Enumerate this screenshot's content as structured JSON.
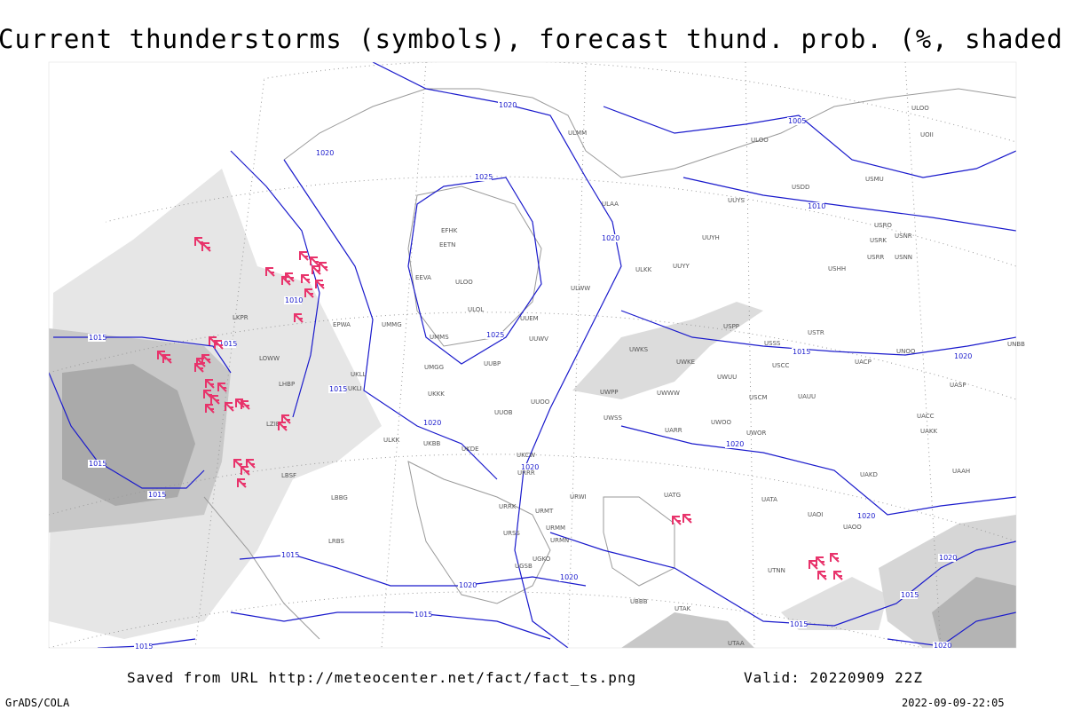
{
  "title": "Current thunderstorms (symbols), forecast thund. prob. (%, shaded)",
  "footer": {
    "source": "Saved from URL http://meteocenter.net/fact/fact_ts.png",
    "valid": "Valid: 20220909 22Z",
    "credit": "GrADS/COLA",
    "timestamp": "2022-09-09-22:05"
  },
  "isobar_labels": [
    "1020",
    "1020",
    "1005",
    "1025",
    "1010",
    "1020",
    "1010",
    "1015",
    "1015",
    "1025",
    "1015",
    "1020",
    "1015",
    "1020",
    "1020",
    "1015",
    "1020",
    "1015",
    "1020",
    "1015",
    "1020",
    "1020",
    "1015",
    "1015",
    "1020",
    "1015",
    "1015",
    "1020"
  ],
  "stations": [
    "ULOO",
    "UOII",
    "ULOO",
    "USDD",
    "UUYS",
    "USMU",
    "USRO",
    "USRK",
    "USNR",
    "USRR",
    "USNN",
    "ULAA",
    "UUYH",
    "ULKK",
    "UUYY",
    "USHH",
    "EFHK",
    "EETN",
    "EEVA",
    "ULOO",
    "ULOL",
    "UUEM",
    "ULWW",
    "ULMM",
    "UMMS",
    "UMGG",
    "UUBP",
    "UUOO",
    "UUWV",
    "UWKS",
    "UWKE",
    "USPP",
    "USSS",
    "USCC",
    "USTR",
    "UACP",
    "UNOO",
    "UASP",
    "UACC",
    "UAKK",
    "UAAH",
    "UWWW",
    "UWUU",
    "USCM",
    "UAUU",
    "UWPP",
    "UWSS",
    "UARR",
    "UWOO",
    "UWOR",
    "UKKK",
    "UUOB",
    "ULKK",
    "UKBB",
    "UKDE",
    "UKCW",
    "URRR",
    "URWI",
    "URRK",
    "URMT",
    "URMM",
    "URMN",
    "URSS",
    "UGSB",
    "UGKO",
    "UBBB",
    "UTAK",
    "UTAA",
    "UATG",
    "UATA",
    "UAOI",
    "UAOO",
    "UAKD",
    "UTNN",
    "LBSF",
    "LBBG",
    "LRBS",
    "LKPR",
    "LHBP",
    "LZIB",
    "LOWW",
    "EPWA",
    "UMMG",
    "UKLL",
    "UKLI",
    "UNBB"
  ]
}
